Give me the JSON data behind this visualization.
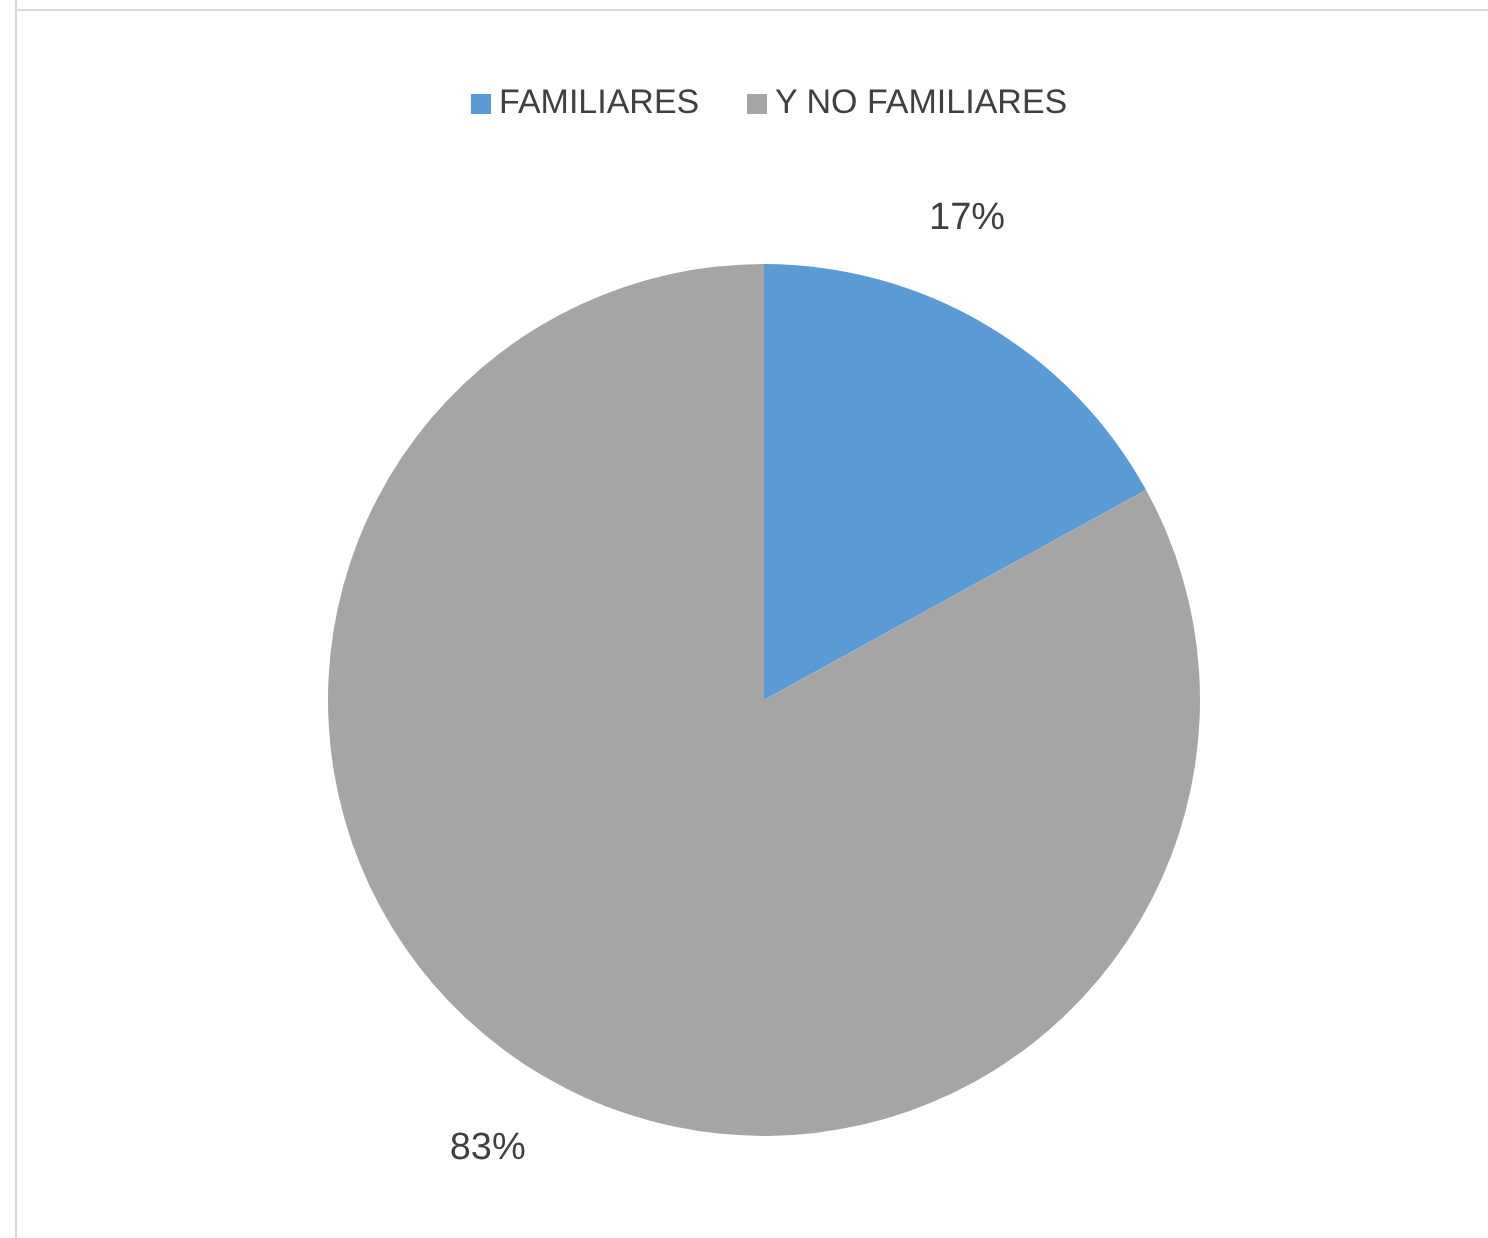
{
  "chart_data": {
    "type": "pie",
    "categories": [
      "FAMILIARES",
      "Y NO FAMILIARES"
    ],
    "values": [
      17,
      83
    ],
    "colors": [
      "#5b9bd5",
      "#a5a5a5"
    ],
    "value_labels": [
      "17%",
      "83%"
    ],
    "legend": "top"
  }
}
